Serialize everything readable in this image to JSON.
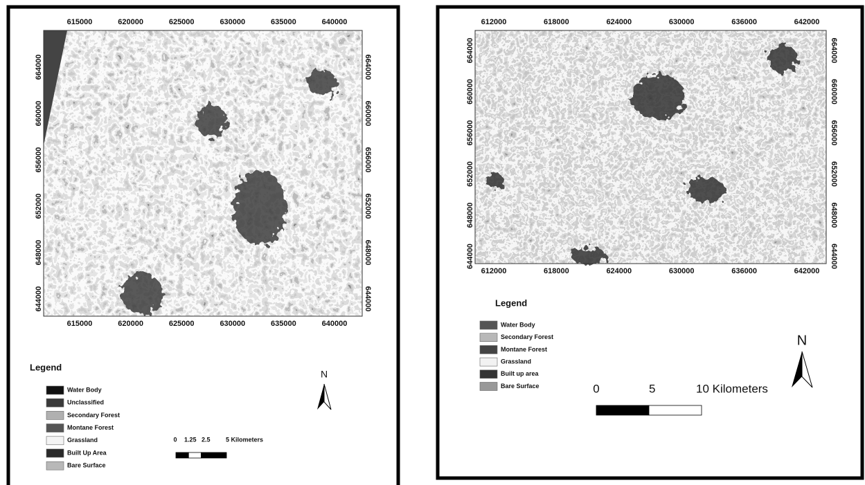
{
  "maps": [
    {
      "x_ticks": [
        "615000",
        "620000",
        "625000",
        "630000",
        "635000",
        "640000"
      ],
      "y_ticks": [
        "664000",
        "660000",
        "656000",
        "652000",
        "648000",
        "644000"
      ],
      "legend": {
        "title": "Legend",
        "items": [
          {
            "label": "Water Body",
            "color": "#111111"
          },
          {
            "label": "Unclassified",
            "color": "#3a3a3a"
          },
          {
            "label": "Secondary Forest",
            "color": "#b0b0b0"
          },
          {
            "label": "Montane Forest",
            "color": "#555555"
          },
          {
            "label": "Grassland",
            "color": "#f4f4f4"
          },
          {
            "label": "Built Up Area",
            "color": "#2a2a2a"
          },
          {
            "label": "Bare Surface",
            "color": "#b8b8b8"
          }
        ]
      },
      "scale_bar": {
        "labels": [
          "0",
          "1.25",
          "2.5",
          "5 Kilometers"
        ]
      },
      "north": "N"
    },
    {
      "x_ticks": [
        "612000",
        "618000",
        "624000",
        "630000",
        "636000",
        "642000"
      ],
      "y_ticks": [
        "664000",
        "660000",
        "656000",
        "652000",
        "648000",
        "644000"
      ],
      "legend": {
        "title": "Legend",
        "items": [
          {
            "label": "Water Body",
            "color": "#555555"
          },
          {
            "label": "Secondary Forest",
            "color": "#b8b8b8"
          },
          {
            "label": "Montane Forest",
            "color": "#444444"
          },
          {
            "label": "Grassland",
            "color": "#f2f2f2"
          },
          {
            "label": "Built up area",
            "color": "#333333"
          },
          {
            "label": "Bare Surface",
            "color": "#999999"
          }
        ]
      },
      "scale_bar": {
        "labels": [
          "0",
          "5",
          "10 Kilometers"
        ]
      },
      "north": "N"
    }
  ]
}
